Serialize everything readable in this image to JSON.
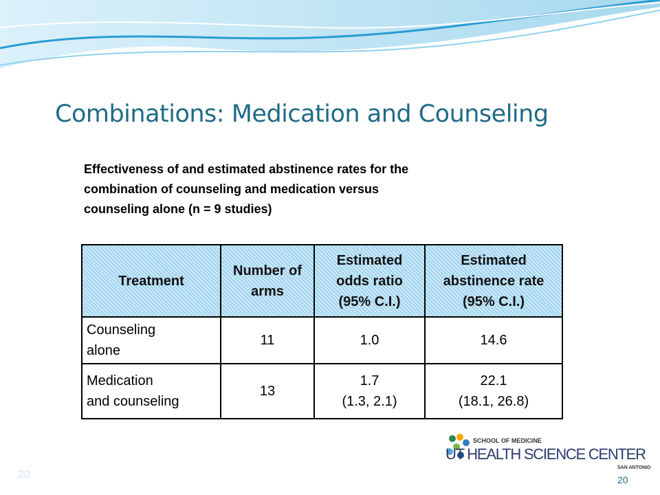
{
  "header": {
    "title": "Combinations: Medication and Counseling"
  },
  "caption": [
    "Effectiveness of and estimated abstinence rates for the",
    "combination of counseling and medication versus",
    "counseling alone (n = 9 studies)"
  ],
  "table": {
    "columns": [
      "Treatment",
      "Number of arms",
      "Estimated odds ratio (95% C.I.)",
      "Estimated abstinence rate (95% C.I.)"
    ],
    "rows": [
      [
        [
          "Counseling",
          "alone"
        ],
        [
          "11"
        ],
        [
          "1.0"
        ],
        [
          "14.6"
        ]
      ],
      [
        [
          "Medication",
          "and counseling"
        ],
        [
          "13"
        ],
        [
          "1.7",
          "(1.3, 2.1)"
        ],
        [
          "22.1",
          "(18.1, 26.8)"
        ]
      ]
    ]
  },
  "logo": {
    "line1": "SCHOOL OF MEDICINE",
    "line2": "UT HEALTH SCIENCE CENTER",
    "line3": "SAN ANTONIO"
  },
  "footer": {
    "slide_number_left": "20",
    "slide_number_right": "20"
  }
}
